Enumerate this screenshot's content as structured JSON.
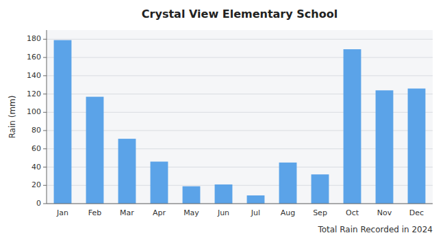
{
  "chart_data": {
    "type": "bar",
    "title": "Crystal View Elementary School",
    "xlabel": "Total Rain Recorded in 2024",
    "ylabel": "Rain (mm)",
    "categories": [
      "Jan",
      "Feb",
      "Mar",
      "Apr",
      "May",
      "Jun",
      "Jul",
      "Aug",
      "Sep",
      "Oct",
      "Nov",
      "Dec"
    ],
    "values": [
      179,
      117,
      71,
      46,
      19,
      21,
      9,
      45,
      32,
      169,
      124,
      126
    ],
    "color": "#5BA3E8",
    "ylim": [
      0,
      190
    ],
    "yticks": [
      0,
      20,
      40,
      60,
      80,
      100,
      120,
      140,
      160,
      180
    ],
    "grid": true
  }
}
